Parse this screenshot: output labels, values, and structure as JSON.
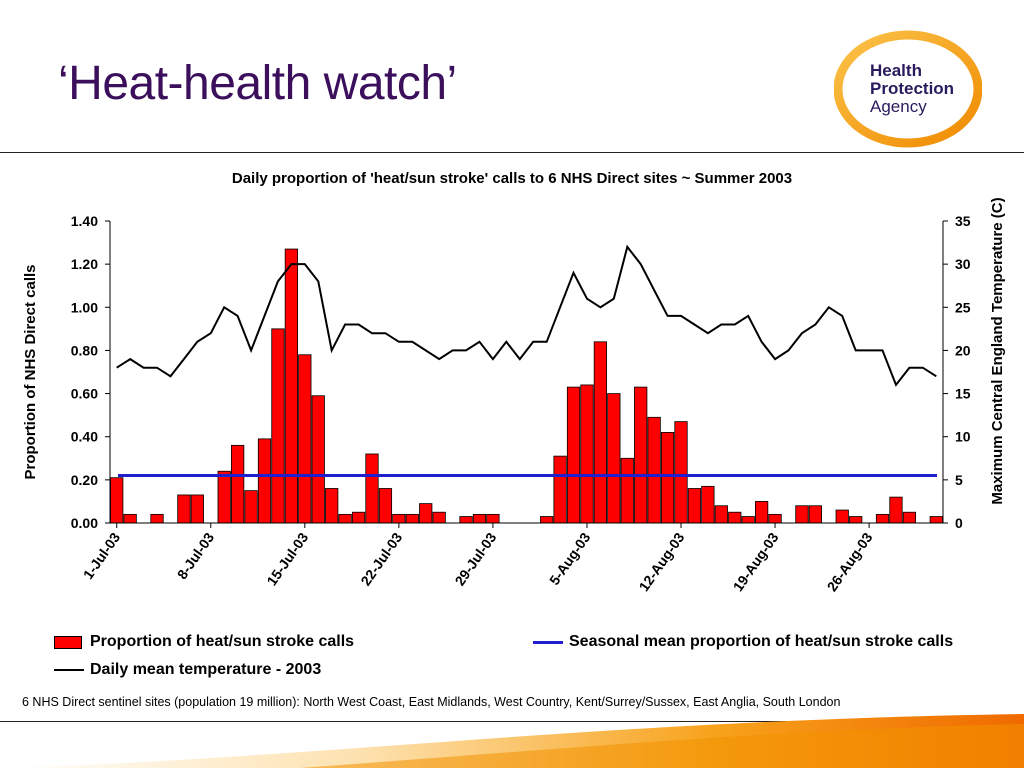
{
  "slide": {
    "title": "‘Heat-health watch’",
    "logo": {
      "line1": "Health",
      "line2": "Protection",
      "line3": "Agency",
      "colors": {
        "ring": "#f7a21b",
        "text": "#2a1b5e"
      }
    }
  },
  "chart_data": {
    "type": "bar",
    "title": "Daily proportion of 'heat/sun stroke' calls to 6 NHS Direct sites ~ Summer 2003",
    "ylabel": "Proportion of NHS Direct calls",
    "y2label": "Maximum Central England Temperature (C)",
    "ylim": [
      0,
      1.4
    ],
    "y2lim": [
      0,
      35
    ],
    "yticks": [
      "0.00",
      "0.20",
      "0.40",
      "0.60",
      "0.80",
      "1.00",
      "1.20",
      "1.40"
    ],
    "y2ticks": [
      "0",
      "5",
      "10",
      "15",
      "20",
      "25",
      "30",
      "35"
    ],
    "xticklabels": [
      "1-Jul-03",
      "8-Jul-03",
      "15-Jul-03",
      "22-Jul-03",
      "29-Jul-03",
      "5-Aug-03",
      "12-Aug-03",
      "19-Aug-03",
      "26-Aug-03"
    ],
    "grid": false,
    "legend_position": "bottom",
    "series": [
      {
        "name": "Proportion of heat/sun stroke calls",
        "type": "bar",
        "axis": "left",
        "color": "#ff0000",
        "values": [
          0.21,
          0.04,
          0,
          0.04,
          0,
          0.13,
          0.13,
          0,
          0.24,
          0.36,
          0.15,
          0.39,
          0.9,
          1.27,
          0.78,
          0.59,
          0.16,
          0.04,
          0.05,
          0.32,
          0.16,
          0.04,
          0.04,
          0.09,
          0.05,
          0,
          0.03,
          0.04,
          0.04,
          0,
          0,
          0,
          0.03,
          0.31,
          0.63,
          0.64,
          0.84,
          0.6,
          0.3,
          0.63,
          0.49,
          0.42,
          0.47,
          0.16,
          0.17,
          0.08,
          0.05,
          0.03,
          0.1,
          0.04,
          0,
          0.08,
          0.08,
          0,
          0.06,
          0.03,
          0,
          0.04,
          0.12,
          0.05,
          0,
          0.03
        ]
      },
      {
        "name": "Seasonal mean proportion of heat/sun stroke calls",
        "type": "line",
        "axis": "left",
        "color": "#1f1fd0",
        "values": [
          0.22
        ]
      },
      {
        "name": "Daily mean temperature - 2003",
        "type": "line",
        "axis": "right",
        "color": "#000000",
        "values": [
          18,
          19,
          18,
          18,
          17,
          19,
          21,
          22,
          25,
          24,
          20,
          24,
          28,
          30,
          30,
          28,
          20,
          23,
          23,
          22,
          22,
          21,
          21,
          20,
          19,
          20,
          20,
          21,
          19,
          21,
          19,
          21,
          21,
          25,
          29,
          26,
          25,
          26,
          32,
          30,
          27,
          24,
          24,
          23,
          22,
          23,
          23,
          24,
          21,
          19,
          20,
          22,
          23,
          25,
          24,
          20,
          20,
          20,
          16,
          18,
          18,
          17
        ]
      }
    ]
  },
  "legend": {
    "bar_label": "Proportion of heat/sun stroke calls",
    "mean_label": "Seasonal mean proportion of heat/sun stroke calls",
    "temp_label": "Daily mean temperature - 2003"
  },
  "footnote": "6 NHS Direct sentinel sites (population 19 million): North West Coast, East Midlands, West Country, Kent/Surrey/Sussex, East Anglia, South London"
}
